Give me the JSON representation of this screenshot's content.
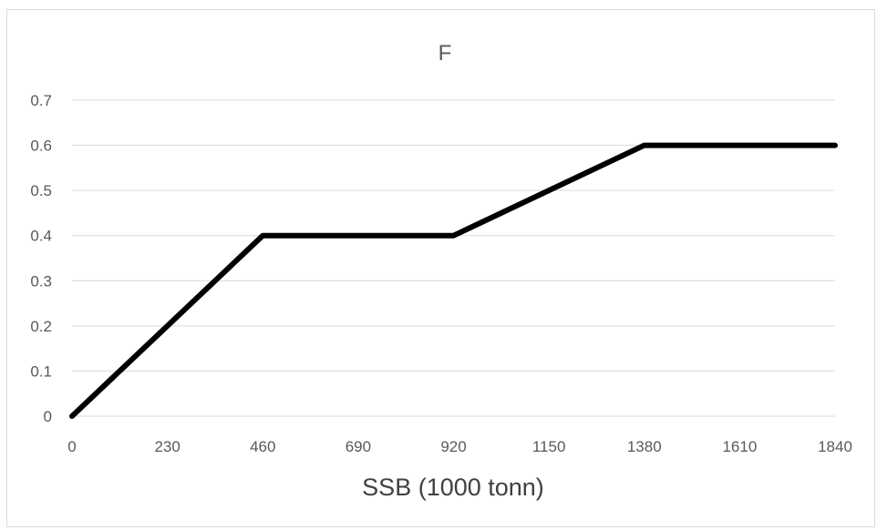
{
  "chart_data": {
    "type": "line",
    "title": "F",
    "xlabel": "SSB (1000 tonn)",
    "ylabel": "",
    "categories": [
      "0",
      "230",
      "460",
      "690",
      "920",
      "1150",
      "1380",
      "1610",
      "1840"
    ],
    "xlim": [
      0,
      1840
    ],
    "ylim": [
      0,
      0.7
    ],
    "yticks": [
      "0",
      "0.1",
      "0.2",
      "0.3",
      "0.4",
      "0.5",
      "0.6",
      "0.7"
    ],
    "grid": true,
    "legend": "none",
    "series": [
      {
        "x": [
          0,
          460,
          920,
          1380,
          1840
        ],
        "y": [
          0,
          0.4,
          0.4,
          0.6,
          0.6
        ],
        "color": "#000000"
      }
    ]
  }
}
